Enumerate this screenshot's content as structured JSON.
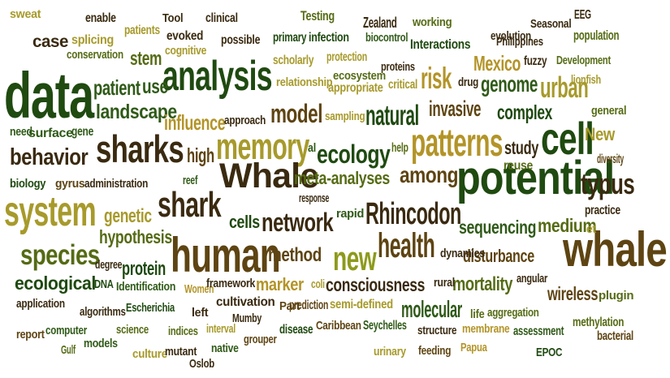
{
  "palette": {
    "dark_green": "#1f4a10",
    "forest_green": "#2f5a17",
    "olive_green": "#556b14",
    "yellow_green": "#8d9a1c",
    "khaki": "#a79a2b",
    "gold": "#b39428",
    "dark_brown": "#3a2a10",
    "brown": "#5e4412"
  },
  "words": [
    {
      "text": "data"
    },
    {
      "text": "analysis"
    },
    {
      "text": "sharks"
    },
    {
      "text": "memory"
    },
    {
      "text": "Whale"
    },
    {
      "text": "human"
    },
    {
      "text": "potential"
    },
    {
      "text": "whale"
    },
    {
      "text": "system"
    },
    {
      "text": "shark"
    },
    {
      "text": "patterns"
    },
    {
      "text": "cell"
    },
    {
      "text": "health"
    },
    {
      "text": "new"
    },
    {
      "text": "Rhincodon"
    },
    {
      "text": "network"
    },
    {
      "text": "ecology"
    },
    {
      "text": "model"
    },
    {
      "text": "natural"
    },
    {
      "text": "risk"
    },
    {
      "text": "urban"
    },
    {
      "text": "typus"
    },
    {
      "text": "species"
    },
    {
      "text": "behavior"
    },
    {
      "text": "among"
    },
    {
      "text": "complex"
    },
    {
      "text": "genome"
    },
    {
      "text": "Mexico"
    },
    {
      "text": "invasive"
    },
    {
      "text": "landscape"
    },
    {
      "text": "patient"
    },
    {
      "text": "use"
    },
    {
      "text": "influence"
    },
    {
      "text": "stem"
    },
    {
      "text": "high"
    },
    {
      "text": "meta-analyses"
    },
    {
      "text": "cells"
    },
    {
      "text": "genetic"
    },
    {
      "text": "hypothesis"
    },
    {
      "text": "protein"
    },
    {
      "text": "ecological"
    },
    {
      "text": "method"
    },
    {
      "text": "marker"
    },
    {
      "text": "consciousness"
    },
    {
      "text": "molecular"
    },
    {
      "text": "mortality"
    },
    {
      "text": "disturbance"
    },
    {
      "text": "sequencing"
    },
    {
      "text": "medium"
    },
    {
      "text": "wireless"
    },
    {
      "text": "study"
    },
    {
      "text": "New"
    },
    {
      "text": "case"
    },
    {
      "text": "sweat"
    },
    {
      "text": "enable"
    },
    {
      "text": "splicing"
    },
    {
      "text": "conservation"
    },
    {
      "text": "patients"
    },
    {
      "text": "evoked"
    },
    {
      "text": "cognitive"
    },
    {
      "text": "Tool"
    },
    {
      "text": "clinical"
    },
    {
      "text": "possible"
    },
    {
      "text": "Testing"
    },
    {
      "text": "primary"
    },
    {
      "text": "infection"
    },
    {
      "text": "scholarly"
    },
    {
      "text": "protection"
    },
    {
      "text": "relationship"
    },
    {
      "text": "ecosystem"
    },
    {
      "text": "appropriate"
    },
    {
      "text": "Zealand"
    },
    {
      "text": "biocontrol"
    },
    {
      "text": "working"
    },
    {
      "text": "Interactions"
    },
    {
      "text": "proteins"
    },
    {
      "text": "critical"
    },
    {
      "text": "evolution"
    },
    {
      "text": "Philippines"
    },
    {
      "text": "Seasonal"
    },
    {
      "text": "EEG"
    },
    {
      "text": "population"
    },
    {
      "text": "fuzzy"
    },
    {
      "text": "Development"
    },
    {
      "text": "drug"
    },
    {
      "text": "lionfish"
    },
    {
      "text": "general"
    },
    {
      "text": "need"
    },
    {
      "text": "surface"
    },
    {
      "text": "gene"
    },
    {
      "text": "approach"
    },
    {
      "text": "sampling"
    },
    {
      "text": "help"
    },
    {
      "text": "al"
    },
    {
      "text": "diversity"
    },
    {
      "text": "reuse"
    },
    {
      "text": "biology"
    },
    {
      "text": "gyrus"
    },
    {
      "text": "administration"
    },
    {
      "text": "reef"
    },
    {
      "text": "response"
    },
    {
      "text": "rapid"
    },
    {
      "text": "practice"
    },
    {
      "text": "et"
    },
    {
      "text": "dynamics"
    },
    {
      "text": "degree"
    },
    {
      "text": "DNA"
    },
    {
      "text": "Identification"
    },
    {
      "text": "Women"
    },
    {
      "text": "framework"
    },
    {
      "text": "coli"
    },
    {
      "text": "rural"
    },
    {
      "text": "angular"
    },
    {
      "text": "plugin"
    },
    {
      "text": "application"
    },
    {
      "text": "cultivation"
    },
    {
      "text": "Part"
    },
    {
      "text": "prediction"
    },
    {
      "text": "semi-defined"
    },
    {
      "text": "life"
    },
    {
      "text": "aggregation"
    },
    {
      "text": "algorithms"
    },
    {
      "text": "Escherichia"
    },
    {
      "text": "left"
    },
    {
      "text": "Mumby"
    },
    {
      "text": "methylation"
    },
    {
      "text": "report"
    },
    {
      "text": "computer"
    },
    {
      "text": "science"
    },
    {
      "text": "indices"
    },
    {
      "text": "interval"
    },
    {
      "text": "grouper"
    },
    {
      "text": "disease"
    },
    {
      "text": "Caribbean"
    },
    {
      "text": "Seychelles"
    },
    {
      "text": "structure"
    },
    {
      "text": "membrane"
    },
    {
      "text": "assessment"
    },
    {
      "text": "bacterial"
    },
    {
      "text": "Gulf"
    },
    {
      "text": "models"
    },
    {
      "text": "culture"
    },
    {
      "text": "mutant"
    },
    {
      "text": "native"
    },
    {
      "text": "urinary"
    },
    {
      "text": "feeding"
    },
    {
      "text": "Papua"
    },
    {
      "text": "EPOC"
    },
    {
      "text": "Oslob"
    }
  ]
}
